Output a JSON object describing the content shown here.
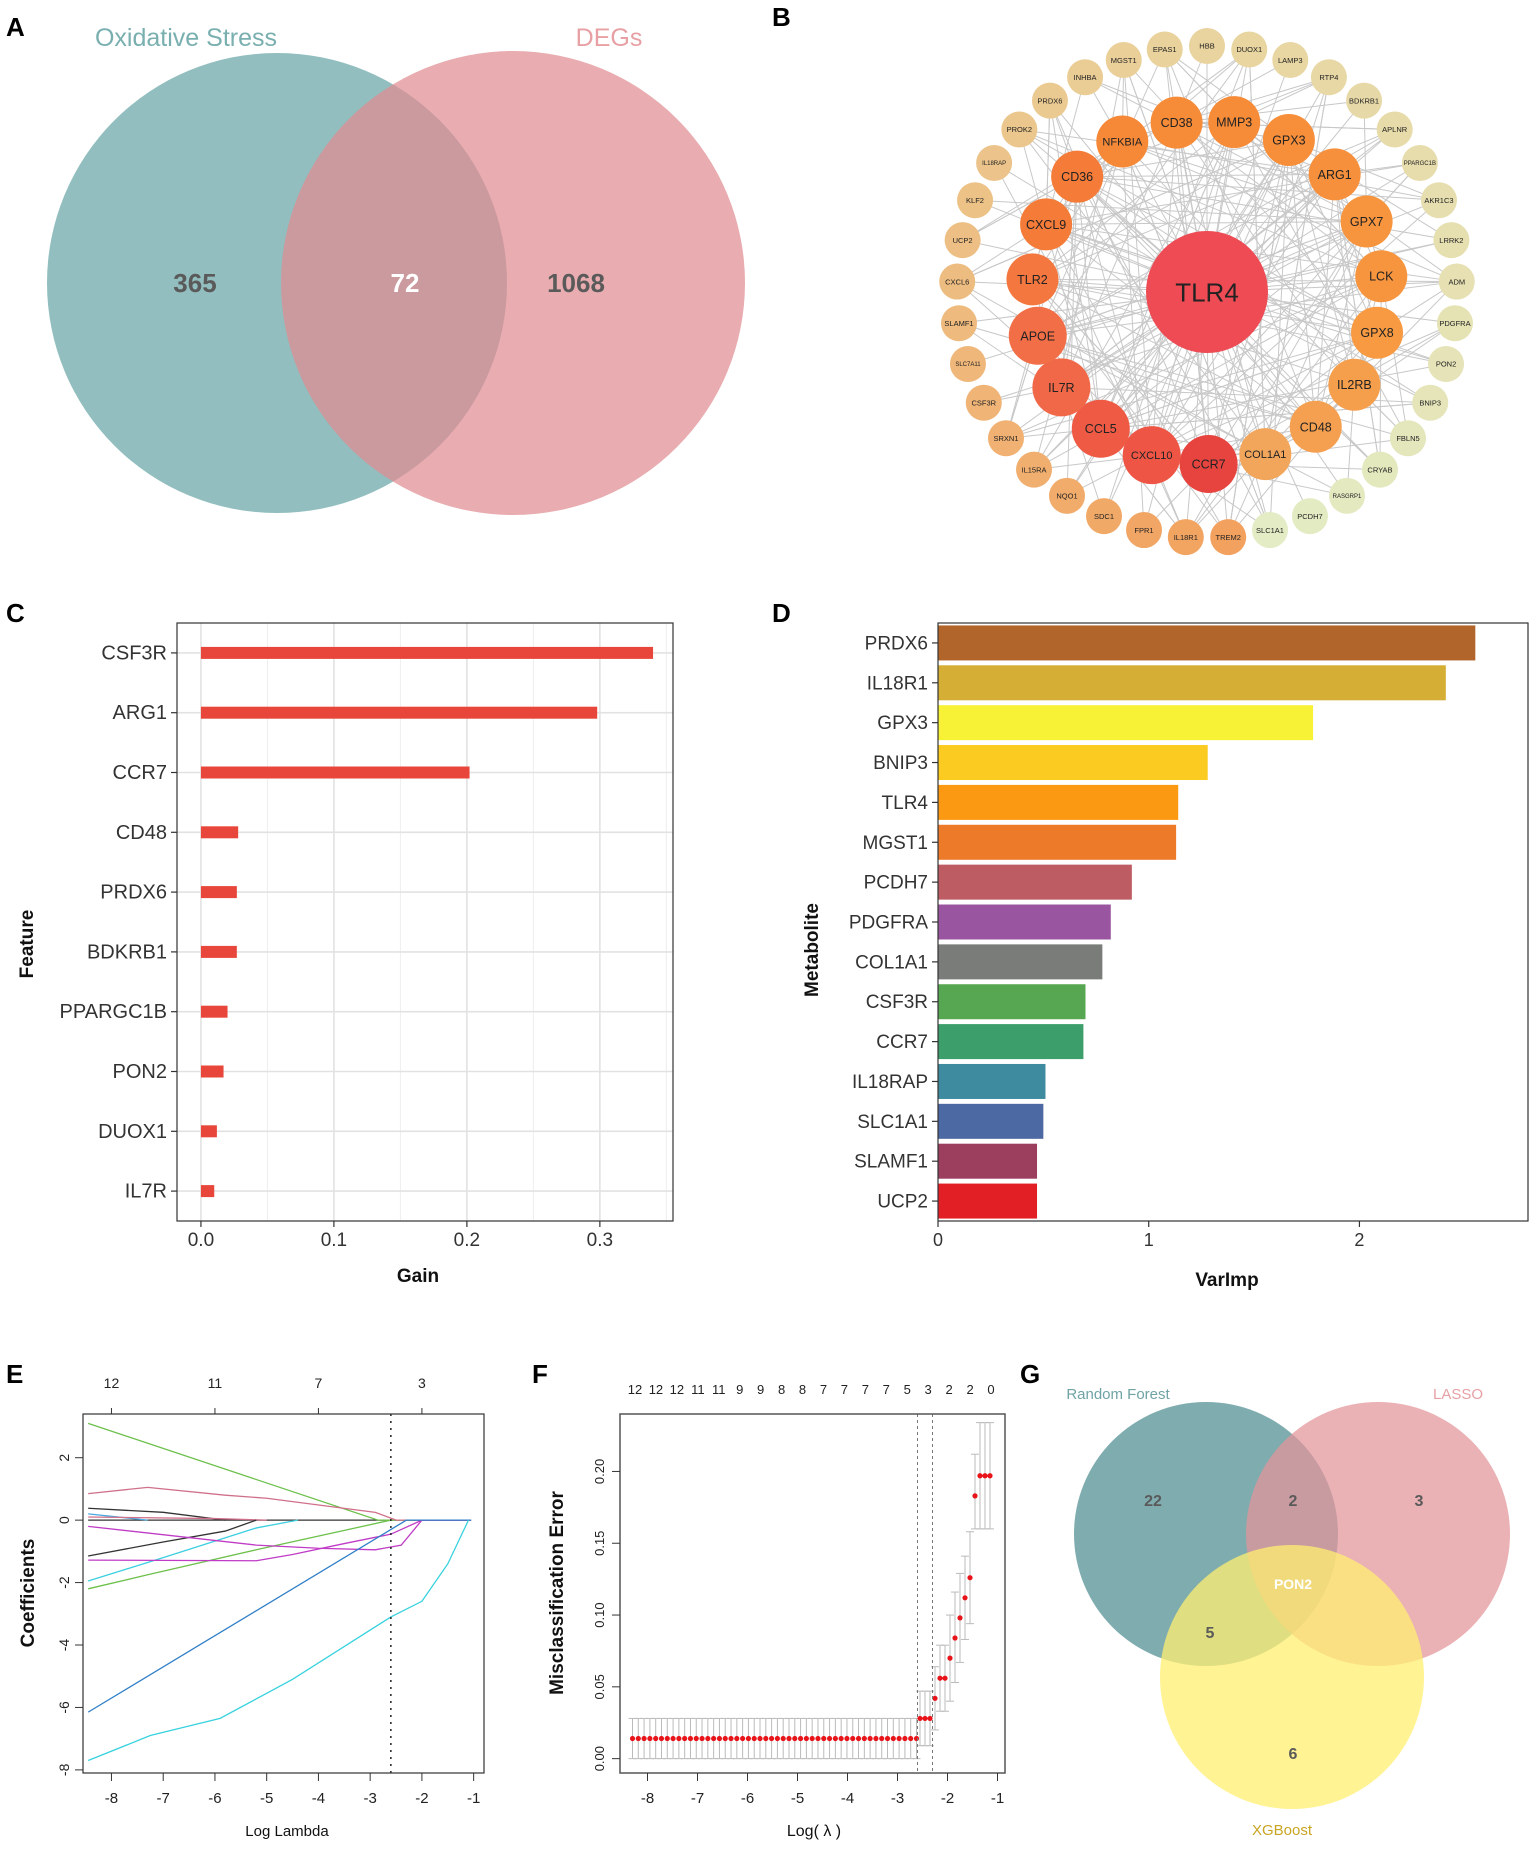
{
  "panel_labels": [
    "A",
    "B",
    "C",
    "D",
    "E",
    "F",
    "G"
  ],
  "chart_data": [
    {
      "panel": "A",
      "type": "venn",
      "sets": [
        {
          "name": "Oxidative Stress",
          "color": "#5E9FA1",
          "label_color": "#7AAFB0"
        },
        {
          "name": "DEGs",
          "color": "#E08C91",
          "label_color": "#E7A0A4"
        }
      ],
      "regions": {
        "only_first": "365",
        "intersection": "72",
        "only_second": "1068"
      }
    },
    {
      "panel": "B",
      "type": "network",
      "center": {
        "label": "TLR4",
        "color": "#EE4B55"
      },
      "inner": [
        {
          "label": "CD38",
          "color": "#F68B38"
        },
        {
          "label": "MMP3",
          "color": "#F68B38"
        },
        {
          "label": "GPX3",
          "color": "#F78E3A"
        },
        {
          "label": "ARG1",
          "color": "#F7903C"
        },
        {
          "label": "GPX7",
          "color": "#F7953E"
        },
        {
          "label": "LCK",
          "color": "#F7953E"
        },
        {
          "label": "GPX8",
          "color": "#F79A42"
        },
        {
          "label": "IL2RB",
          "color": "#F59E4C"
        },
        {
          "label": "CD48",
          "color": "#F5A050"
        },
        {
          "label": "COL1A1",
          "color": "#F2A65C"
        },
        {
          "label": "CCR7",
          "color": "#E8443F"
        },
        {
          "label": "CXCL10",
          "color": "#EE5545"
        },
        {
          "label": "CCL5",
          "color": "#EF5A45"
        },
        {
          "label": "IL7R",
          "color": "#F06848"
        },
        {
          "label": "APOE",
          "color": "#F26E47"
        },
        {
          "label": "TLR2",
          "color": "#F4773F"
        },
        {
          "label": "CXCL9",
          "color": "#F47B38"
        },
        {
          "label": "CD36",
          "color": "#F47B38"
        },
        {
          "label": "NFKBIA",
          "color": "#F68938"
        }
      ],
      "outer": [
        "HBB",
        "DUOX1",
        "LAMP3",
        "RTP4",
        "BDKRB1",
        "APLNR",
        "PPARGC1B",
        "AKR1C3",
        "LRRK2",
        "ADM",
        "PDGFRA",
        "PON2",
        "BNIP3",
        "FBLN5",
        "CRYAB",
        "RASGRP1",
        "PCDH7",
        "SLC1A1",
        "TREM2",
        "IL18R1",
        "FPR1",
        "SDC1",
        "NQO1",
        "IL15RA",
        "SRXN1",
        "CSF3R",
        "SLC7A11",
        "SLAMF1",
        "CXCL6",
        "UCP2",
        "KLF2",
        "IL18RAP",
        "PROK2",
        "PRDX6",
        "INHBA",
        "MGST1",
        "EPAS1"
      ],
      "outer_colors": [
        "#F3A15E",
        "#E9D29C",
        "#E3ECC4"
      ],
      "edge_color": "#C8C8C8"
    },
    {
      "panel": "C",
      "type": "bar",
      "orientation": "horizontal",
      "categories": [
        "CSF3R",
        "ARG1",
        "CCR7",
        "CD48",
        "PRDX6",
        "BDKRB1",
        "PPARGC1B",
        "PON2",
        "DUOX1",
        "IL7R"
      ],
      "values": [
        0.34,
        0.298,
        0.202,
        0.028,
        0.027,
        0.027,
        0.02,
        0.017,
        0.012,
        0.01
      ],
      "xlabel": "Gain",
      "ylabel": "Feature",
      "xlim": [
        -0.018,
        0.355
      ],
      "xticks": [
        0,
        0.1,
        0.2,
        0.3
      ],
      "xtick_labels": [
        "0.0",
        "0.1",
        "0.2",
        "0.3"
      ],
      "color": "#E8463A",
      "grid": true
    },
    {
      "panel": "D",
      "type": "bar",
      "orientation": "horizontal",
      "categories": [
        "PRDX6",
        "IL18R1",
        "GPX3",
        "BNIP3",
        "TLR4",
        "MGST1",
        "PCDH7",
        "PDGFRA",
        "COL1A1",
        "CSF3R",
        "CCR7",
        "IL18RAP",
        "SLC1A1",
        "SLAMF1",
        "UCP2"
      ],
      "values": [
        2.55,
        2.41,
        1.78,
        1.28,
        1.14,
        1.13,
        0.92,
        0.82,
        0.78,
        0.7,
        0.69,
        0.51,
        0.5,
        0.47,
        0.47
      ],
      "colors": [
        "#B2652A",
        "#D4AE35",
        "#F8F236",
        "#FCCB22",
        "#FB9A12",
        "#EC7A28",
        "#BE5C63",
        "#9A55A0",
        "#7A7C7A",
        "#57A752",
        "#3C9E6A",
        "#3E8BA0",
        "#4D69A3",
        "#9C3E5E",
        "#E31F26"
      ],
      "xlabel": "VarImp",
      "ylabel": "Metabolite",
      "xlim": [
        0,
        2.8
      ],
      "xticks": [
        0,
        1,
        2
      ],
      "xtick_labels": [
        "0",
        "1",
        "2"
      ],
      "grid": false
    },
    {
      "panel": "E",
      "type": "line",
      "xlabel": "Log Lambda",
      "ylabel": "Coefficients",
      "xlim": [
        -8.55,
        -0.8
      ],
      "ylim": [
        -8.1,
        3.4
      ],
      "xticks": [
        -8,
        -7,
        -6,
        -5,
        -4,
        -3,
        -2,
        -1
      ],
      "xtick_labels": [
        "-8",
        "-7",
        "-6",
        "-5",
        "-4",
        "-3",
        "-2",
        "-1"
      ],
      "yticks": [
        -8,
        -6,
        -4,
        -2,
        0,
        2
      ],
      "ytick_labels": [
        "-8",
        "-6",
        "-4",
        "-2",
        "0",
        "2"
      ],
      "top_axis": {
        "positions": [
          -8,
          -6,
          -4,
          -2
        ],
        "labels": [
          "12",
          "11",
          "7",
          "3"
        ]
      },
      "vline": -2.6,
      "series": [
        {
          "color": "#333333",
          "points": [
            [
              -8.45,
              0
            ],
            [
              -1.05,
              0
            ]
          ]
        },
        {
          "color": "#6DC04B",
          "points": [
            [
              -8.45,
              3.1
            ],
            [
              -2.85,
              0
            ],
            [
              -1.05,
              0
            ]
          ]
        },
        {
          "color": "#D0708A",
          "points": [
            [
              -8.45,
              0.85
            ],
            [
              -7.3,
              1.05
            ],
            [
              -5.8,
              0.8
            ],
            [
              -5,
              0.7
            ],
            [
              -2.9,
              0.25
            ],
            [
              -2.5,
              0
            ],
            [
              -1.05,
              0
            ]
          ]
        },
        {
          "color": "#333333",
          "points": [
            [
              -8.45,
              0.38
            ],
            [
              -7,
              0.25
            ],
            [
              -5.8,
              0
            ]
          ]
        },
        {
          "color": "#4AA9E0",
          "points": [
            [
              -8.45,
              0.2
            ],
            [
              -7.3,
              0
            ]
          ]
        },
        {
          "color": "#D0708A",
          "points": [
            [
              -8.45,
              0.1
            ],
            [
              -6,
              0.05
            ],
            [
              -5,
              0
            ]
          ]
        },
        {
          "color": "#333333",
          "points": [
            [
              -8.45,
              -1.15
            ],
            [
              -7,
              -0.7
            ],
            [
              -5.8,
              -0.35
            ],
            [
              -5.2,
              0
            ]
          ]
        },
        {
          "color": "#3CCFE0",
          "points": [
            [
              -8.45,
              -1.95
            ],
            [
              -7,
              -1.2
            ],
            [
              -5.2,
              -0.25
            ],
            [
              -4.4,
              0
            ]
          ]
        },
        {
          "color": "#6DC04B",
          "points": [
            [
              -8.45,
              -2.2
            ],
            [
              -7.3,
              -1.75
            ],
            [
              -5.2,
              -0.95
            ],
            [
              -2.6,
              0
            ]
          ]
        },
        {
          "color": "#C03BC6",
          "points": [
            [
              -8.45,
              -0.2
            ],
            [
              -5.2,
              -0.8
            ],
            [
              -4,
              -0.9
            ],
            [
              -2.9,
              -0.95
            ],
            [
              -2.4,
              -0.8
            ],
            [
              -2,
              0
            ],
            [
              -1.05,
              0
            ]
          ]
        },
        {
          "color": "#C03BC6",
          "points": [
            [
              -8.45,
              -1.28
            ],
            [
              -5.2,
              -1.3
            ],
            [
              -4.5,
              -1.1
            ],
            [
              -3.5,
              -0.75
            ],
            [
              -2.6,
              -0.45
            ],
            [
              -2,
              0
            ],
            [
              -1.05,
              0
            ]
          ]
        },
        {
          "color": "#2F7FC8",
          "points": [
            [
              -8.45,
              -6.15
            ],
            [
              -2.3,
              0
            ],
            [
              -1.05,
              0
            ]
          ]
        },
        {
          "color": "#38D2DE",
          "points": [
            [
              -8.45,
              -7.7
            ],
            [
              -7.25,
              -6.9
            ],
            [
              -5.9,
              -6.35
            ],
            [
              -4.5,
              -5.1
            ],
            [
              -2.6,
              -3.1
            ],
            [
              -2,
              -2.6
            ],
            [
              -1.5,
              -1.4
            ],
            [
              -1.1,
              0
            ]
          ]
        }
      ]
    },
    {
      "panel": "F",
      "type": "scatter",
      "xlabel": "Log( λ )",
      "ylabel": "Misclassification Error",
      "xlim": [
        -8.55,
        -0.85
      ],
      "ylim": [
        -0.01,
        0.24
      ],
      "xticks": [
        -8,
        -7,
        -6,
        -5,
        -4,
        -3,
        -2,
        -1
      ],
      "xtick_labels": [
        "-8",
        "-7",
        "-6",
        "-5",
        "-4",
        "-3",
        "-2",
        "-1"
      ],
      "yticks": [
        0,
        0.05,
        0.1,
        0.15,
        0.2
      ],
      "ytick_labels": [
        "0.00",
        "0.05",
        "0.10",
        "0.15",
        "0.20"
      ],
      "top_labels": [
        "12",
        "12",
        "12",
        "11",
        "11",
        "9",
        "9",
        "8",
        "8",
        "7",
        "7",
        "7",
        "7",
        "5",
        "3",
        "2",
        "2",
        "0"
      ],
      "vlines": [
        -2.6,
        -2.3
      ],
      "point_color": "#E8141A",
      "errorbar_color": "#BBBBBB",
      "flat_segment": {
        "from": -8.3,
        "to": -2.62,
        "count": 50,
        "y": 0.014,
        "lo": 0.0,
        "hi": 0.028
      },
      "points": [
        [
          -2.55,
          0.028,
          0.009,
          0.047
        ],
        [
          -2.45,
          0.028,
          0.009,
          0.047
        ],
        [
          -2.35,
          0.028,
          0.009,
          0.047
        ],
        [
          -2.25,
          0.042,
          0.02,
          0.064
        ],
        [
          -2.15,
          0.056,
          0.033,
          0.079
        ],
        [
          -2.05,
          0.056,
          0.033,
          0.079
        ],
        [
          -1.95,
          0.07,
          0.04,
          0.1
        ],
        [
          -1.85,
          0.084,
          0.053,
          0.116
        ],
        [
          -1.75,
          0.098,
          0.067,
          0.129
        ],
        [
          -1.65,
          0.112,
          0.083,
          0.141
        ],
        [
          -1.55,
          0.126,
          0.094,
          0.158
        ],
        [
          -1.45,
          0.183,
          0.16,
          0.212
        ],
        [
          -1.35,
          0.197,
          0.16,
          0.234
        ],
        [
          -1.25,
          0.197,
          0.16,
          0.234
        ],
        [
          -1.15,
          0.197,
          0.16,
          0.234
        ]
      ]
    },
    {
      "panel": "G",
      "type": "venn",
      "sets": [
        {
          "name": "Random Forest",
          "color": "#4E8C90",
          "label_color": "#6FA3A5"
        },
        {
          "name": "LASSO",
          "color": "#E3949A",
          "label_color": "#E7A0A4"
        },
        {
          "name": "XGBoost",
          "color": "#FFEF70",
          "label_color": "#C9A521"
        }
      ],
      "regions": {
        "rf_only": "22",
        "rf_lasso": "2",
        "lasso_only": "3",
        "all": "PON2",
        "rf_xgb": "5",
        "xgb_only": "6"
      }
    }
  ]
}
